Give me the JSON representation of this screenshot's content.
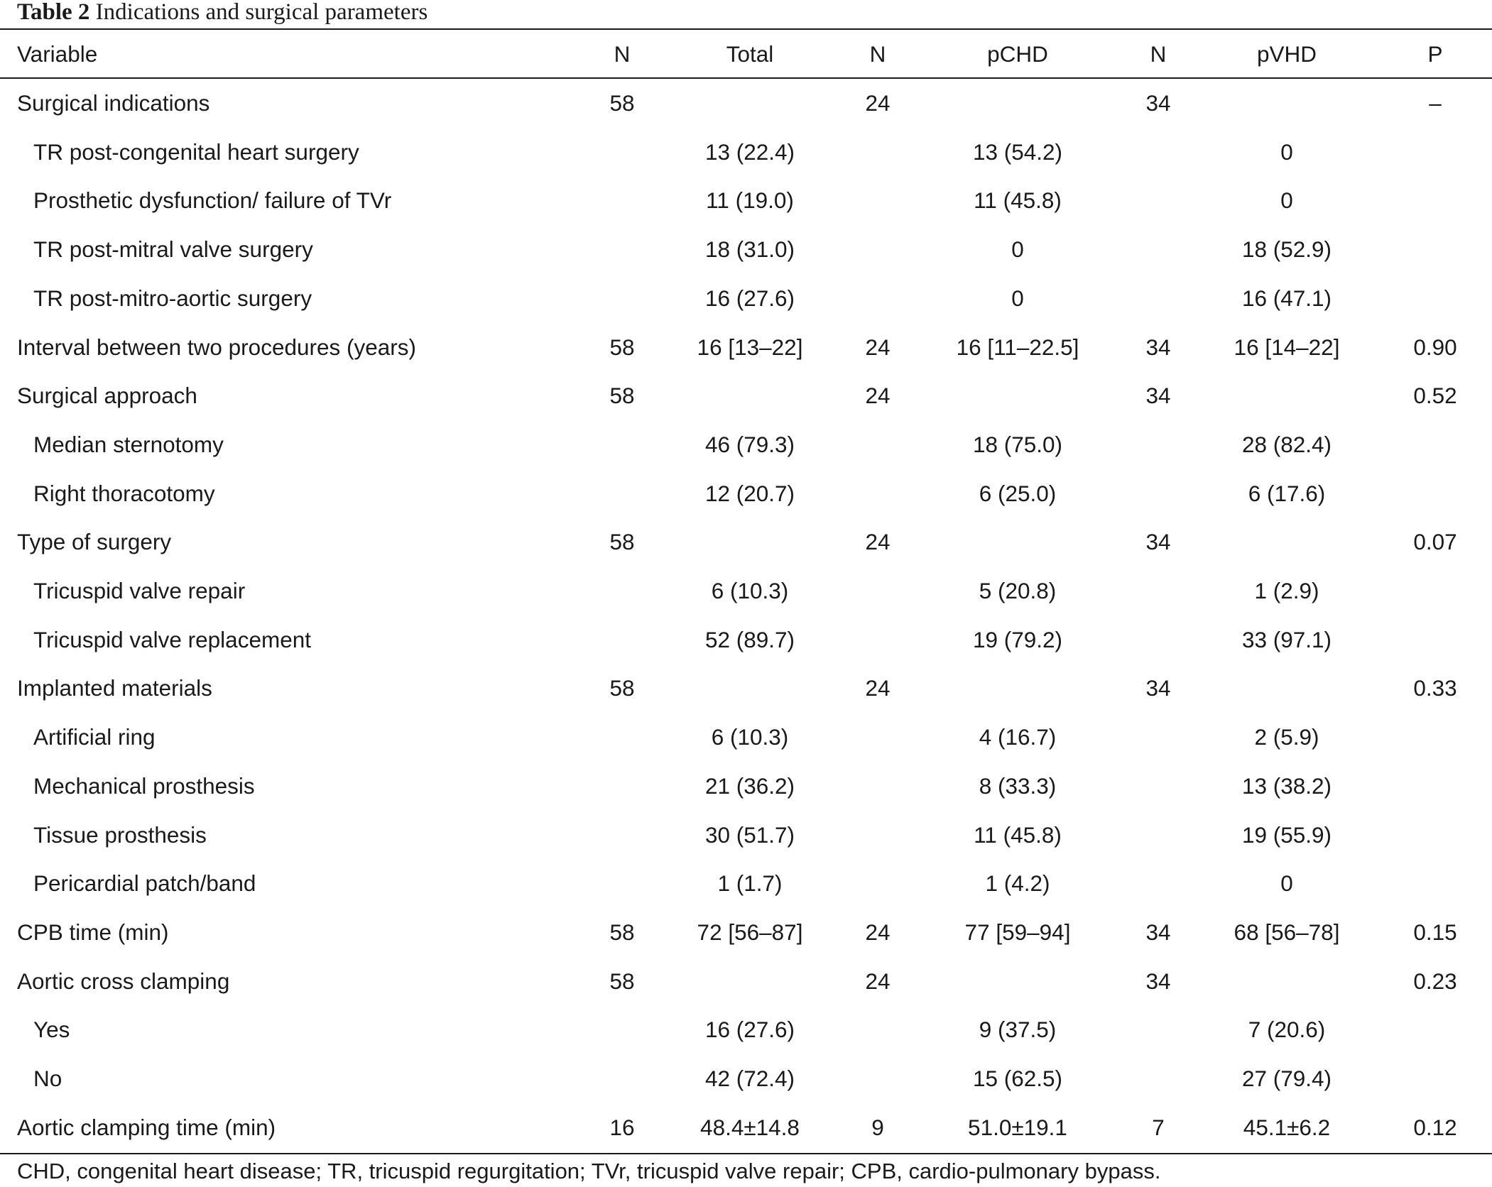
{
  "caption": {
    "label": "Table 2",
    "title": "Indications and surgical parameters"
  },
  "columns": [
    "Variable",
    "N",
    "Total",
    "N",
    "pCHD",
    "N",
    "pVHD",
    "P"
  ],
  "rows": [
    {
      "variable": "Surgical indications",
      "n_total": "58",
      "total": "",
      "n_pchd": "24",
      "pchd": "",
      "n_pvhd": "34",
      "pvhd": "",
      "p": "–",
      "sub": false
    },
    {
      "variable": "TR post-congenital heart surgery",
      "n_total": "",
      "total": "13 (22.4)",
      "n_pchd": "",
      "pchd": "13 (54.2)",
      "n_pvhd": "",
      "pvhd": "0",
      "p": "",
      "sub": true
    },
    {
      "variable": "Prosthetic dysfunction/ failure of TVr",
      "n_total": "",
      "total": "11 (19.0)",
      "n_pchd": "",
      "pchd": "11 (45.8)",
      "n_pvhd": "",
      "pvhd": "0",
      "p": "",
      "sub": true
    },
    {
      "variable": "TR post-mitral valve surgery",
      "n_total": "",
      "total": "18 (31.0)",
      "n_pchd": "",
      "pchd": "0",
      "n_pvhd": "",
      "pvhd": "18 (52.9)",
      "p": "",
      "sub": true
    },
    {
      "variable": "TR post-mitro-aortic surgery",
      "n_total": "",
      "total": "16 (27.6)",
      "n_pchd": "",
      "pchd": "0",
      "n_pvhd": "",
      "pvhd": "16 (47.1)",
      "p": "",
      "sub": true
    },
    {
      "variable": "Interval between two procedures (years)",
      "n_total": "58",
      "total": "16 [13–22]",
      "n_pchd": "24",
      "pchd": "16 [11–22.5]",
      "n_pvhd": "34",
      "pvhd": "16 [14–22]",
      "p": "0.90",
      "sub": false
    },
    {
      "variable": "Surgical approach",
      "n_total": "58",
      "total": "",
      "n_pchd": "24",
      "pchd": "",
      "n_pvhd": "34",
      "pvhd": "",
      "p": "0.52",
      "sub": false
    },
    {
      "variable": "Median sternotomy",
      "n_total": "",
      "total": "46 (79.3)",
      "n_pchd": "",
      "pchd": "18 (75.0)",
      "n_pvhd": "",
      "pvhd": "28 (82.4)",
      "p": "",
      "sub": true
    },
    {
      "variable": "Right thoracotomy",
      "n_total": "",
      "total": "12 (20.7)",
      "n_pchd": "",
      "pchd": "6 (25.0)",
      "n_pvhd": "",
      "pvhd": "6 (17.6)",
      "p": "",
      "sub": true
    },
    {
      "variable": "Type of surgery",
      "n_total": "58",
      "total": "",
      "n_pchd": "24",
      "pchd": "",
      "n_pvhd": "34",
      "pvhd": "",
      "p": "0.07",
      "sub": false
    },
    {
      "variable": "Tricuspid valve repair",
      "n_total": "",
      "total": "6 (10.3)",
      "n_pchd": "",
      "pchd": "5 (20.8)",
      "n_pvhd": "",
      "pvhd": "1 (2.9)",
      "p": "",
      "sub": true
    },
    {
      "variable": "Tricuspid valve replacement",
      "n_total": "",
      "total": "52 (89.7)",
      "n_pchd": "",
      "pchd": "19 (79.2)",
      "n_pvhd": "",
      "pvhd": "33 (97.1)",
      "p": "",
      "sub": true
    },
    {
      "variable": "Implanted materials",
      "n_total": "58",
      "total": "",
      "n_pchd": "24",
      "pchd": "",
      "n_pvhd": "34",
      "pvhd": "",
      "p": "0.33",
      "sub": false
    },
    {
      "variable": "Artificial ring",
      "n_total": "",
      "total": "6 (10.3)",
      "n_pchd": "",
      "pchd": "4 (16.7)",
      "n_pvhd": "",
      "pvhd": "2 (5.9)",
      "p": "",
      "sub": true
    },
    {
      "variable": "Mechanical prosthesis",
      "n_total": "",
      "total": "21 (36.2)",
      "n_pchd": "",
      "pchd": "8 (33.3)",
      "n_pvhd": "",
      "pvhd": "13 (38.2)",
      "p": "",
      "sub": true
    },
    {
      "variable": "Tissue prosthesis",
      "n_total": "",
      "total": "30 (51.7)",
      "n_pchd": "",
      "pchd": "11 (45.8)",
      "n_pvhd": "",
      "pvhd": "19 (55.9)",
      "p": "",
      "sub": true
    },
    {
      "variable": "Pericardial patch/band",
      "n_total": "",
      "total": "1 (1.7)",
      "n_pchd": "",
      "pchd": "1 (4.2)",
      "n_pvhd": "",
      "pvhd": "0",
      "p": "",
      "sub": true
    },
    {
      "variable": "CPB time (min)",
      "n_total": "58",
      "total": "72 [56–87]",
      "n_pchd": "24",
      "pchd": "77 [59–94]",
      "n_pvhd": "34",
      "pvhd": "68 [56–78]",
      "p": "0.15",
      "sub": false
    },
    {
      "variable": "Aortic cross clamping",
      "n_total": "58",
      "total": "",
      "n_pchd": "24",
      "pchd": "",
      "n_pvhd": "34",
      "pvhd": "",
      "p": "0.23",
      "sub": false
    },
    {
      "variable": "Yes",
      "n_total": "",
      "total": "16 (27.6)",
      "n_pchd": "",
      "pchd": "9 (37.5)",
      "n_pvhd": "",
      "pvhd": "7 (20.6)",
      "p": "",
      "sub": true
    },
    {
      "variable": "No",
      "n_total": "",
      "total": "42 (72.4)",
      "n_pchd": "",
      "pchd": "15 (62.5)",
      "n_pvhd": "",
      "pvhd": "27 (79.4)",
      "p": "",
      "sub": true
    },
    {
      "variable": "Aortic clamping time (min)",
      "n_total": "16",
      "total": "48.4±14.8",
      "n_pchd": "9",
      "pchd": "51.0±19.1",
      "n_pvhd": "7",
      "pvhd": "45.1±6.2",
      "p": "0.12",
      "sub": false
    }
  ],
  "footnote": "CHD, congenital heart disease; TR, tricuspid regurgitation; TVr, tricuspid valve repair; CPB, cardio-pulmonary bypass."
}
